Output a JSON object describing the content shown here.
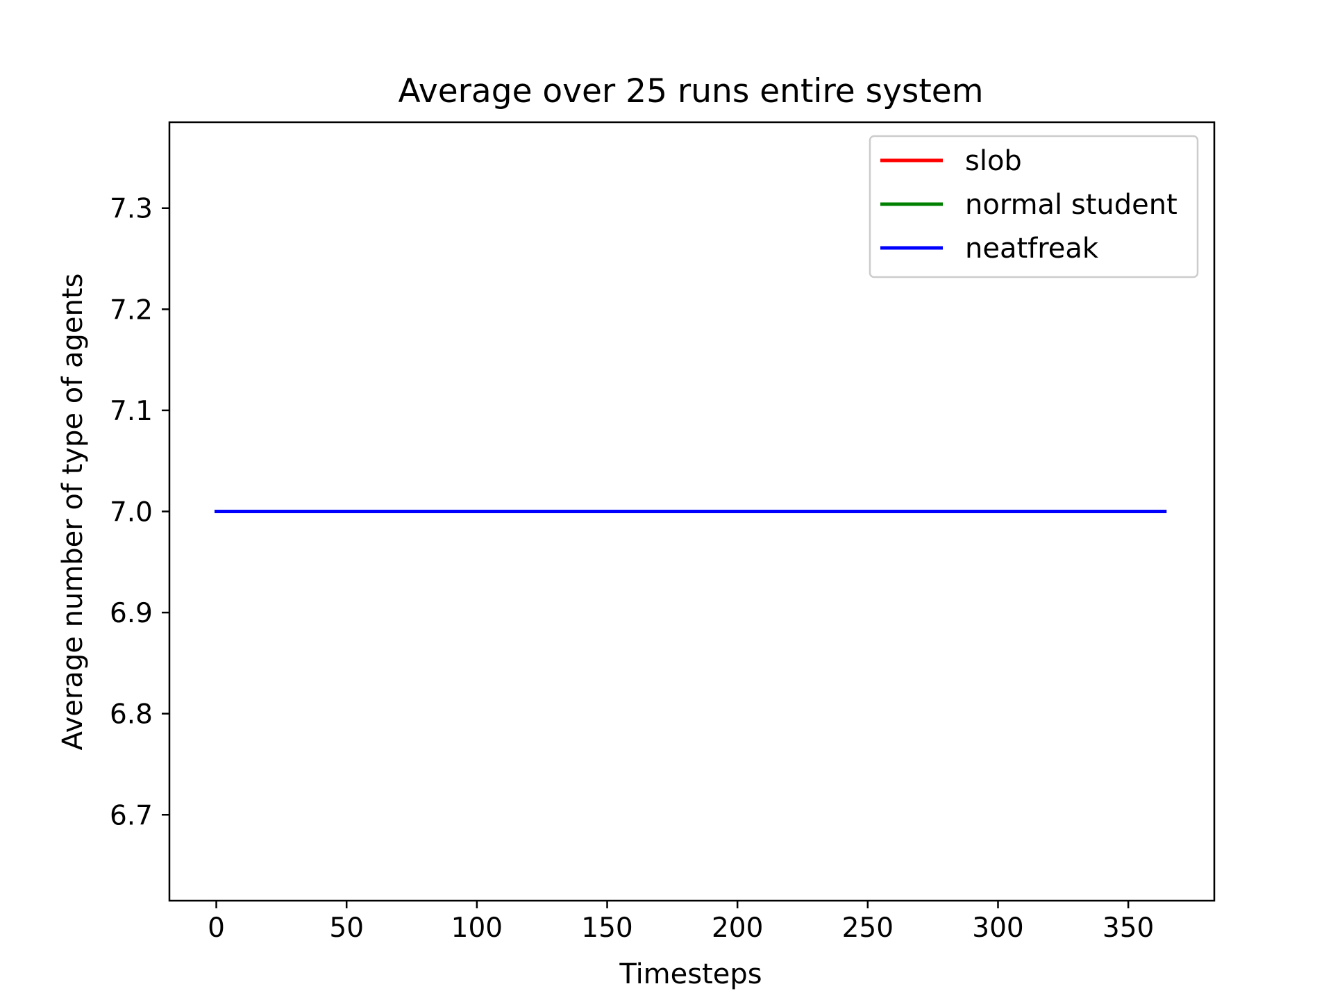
{
  "chart_data": {
    "type": "line",
    "title": "Average over 25 runs entire system",
    "xlabel": "Timesteps",
    "ylabel": "Average number of type of agents",
    "xlim": [
      -18,
      383
    ],
    "ylim": [
      6.615,
      7.385
    ],
    "x_ticks": [
      0,
      50,
      100,
      150,
      200,
      250,
      300,
      350
    ],
    "x_tick_labels": [
      "0",
      "50",
      "100",
      "150",
      "200",
      "250",
      "300",
      "350"
    ],
    "y_ticks": [
      6.7,
      6.8,
      6.9,
      7.0,
      7.1,
      7.2,
      7.3
    ],
    "y_tick_labels": [
      "6.7",
      "6.8",
      "6.9",
      "7.0",
      "7.1",
      "7.2",
      "7.3"
    ],
    "grid": false,
    "legend_position": "top-right",
    "series": [
      {
        "name": "slob",
        "color": "#ff0000",
        "x": [
          0,
          364
        ],
        "y": [
          7.0,
          7.0
        ]
      },
      {
        "name": "normal student",
        "color": "#008000",
        "x": [
          0,
          364
        ],
        "y": [
          7.0,
          7.0
        ]
      },
      {
        "name": "neatfreak",
        "color": "#0000ff",
        "x": [
          0,
          364
        ],
        "y": [
          7.0,
          7.0
        ]
      }
    ]
  }
}
